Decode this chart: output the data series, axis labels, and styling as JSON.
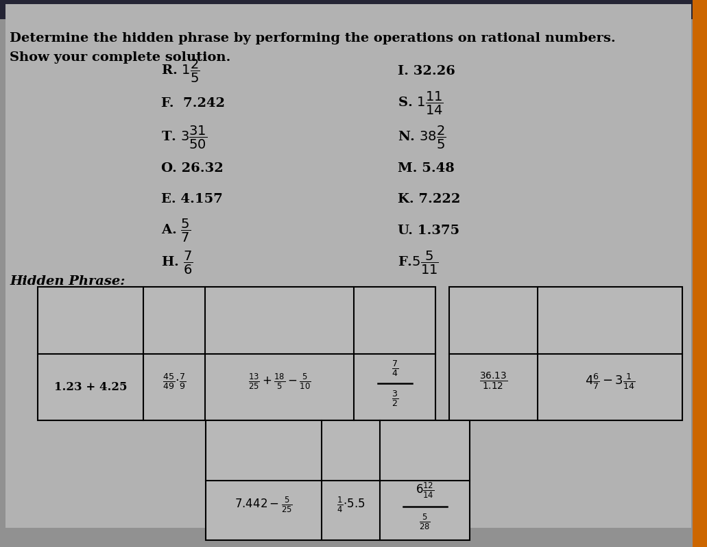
{
  "title_line1": "Determine the hidden phrase by performing the operations on rational numbers.",
  "title_line2": "Show your complete solution.",
  "bg_color": "#919191",
  "content_bg": "#b0b0b0",
  "header_dark": "#2d2d3a",
  "orange_bar": "#cc6600",
  "text_color": "#000000",
  "cell_bg": "#b8b8b8",
  "hidden_phrase_label": "Hidden Phrase:",
  "left_items": [
    {
      "letter": "R.",
      "value": "R. $1\\dfrac{2}{5}$"
    },
    {
      "letter": "F.",
      "value": "F.  7.242"
    },
    {
      "letter": "T.",
      "value": "T. $3\\dfrac{31}{50}$"
    },
    {
      "letter": "O.",
      "value": "O. 26.32"
    },
    {
      "letter": "E.",
      "value": "E. 4.157"
    },
    {
      "letter": "A.",
      "value": "A. $\\dfrac{5}{7}$"
    },
    {
      "letter": "H.",
      "value": "H. $\\dfrac{7}{6}$"
    }
  ],
  "right_items": [
    {
      "letter": "I.",
      "value": "I. 32.26"
    },
    {
      "letter": "S.",
      "value": "S. $1\\dfrac{11}{14}$"
    },
    {
      "letter": "N.",
      "value": "N. $38\\dfrac{2}{5}$"
    },
    {
      "letter": "M.",
      "value": "M. 5.48"
    },
    {
      "letter": "K.",
      "value": "K. 7.222"
    },
    {
      "letter": "U.",
      "value": "U. 1.375"
    },
    {
      "letter": "F.",
      "value": "F.$5\\dfrac{5}{11}$"
    }
  ]
}
